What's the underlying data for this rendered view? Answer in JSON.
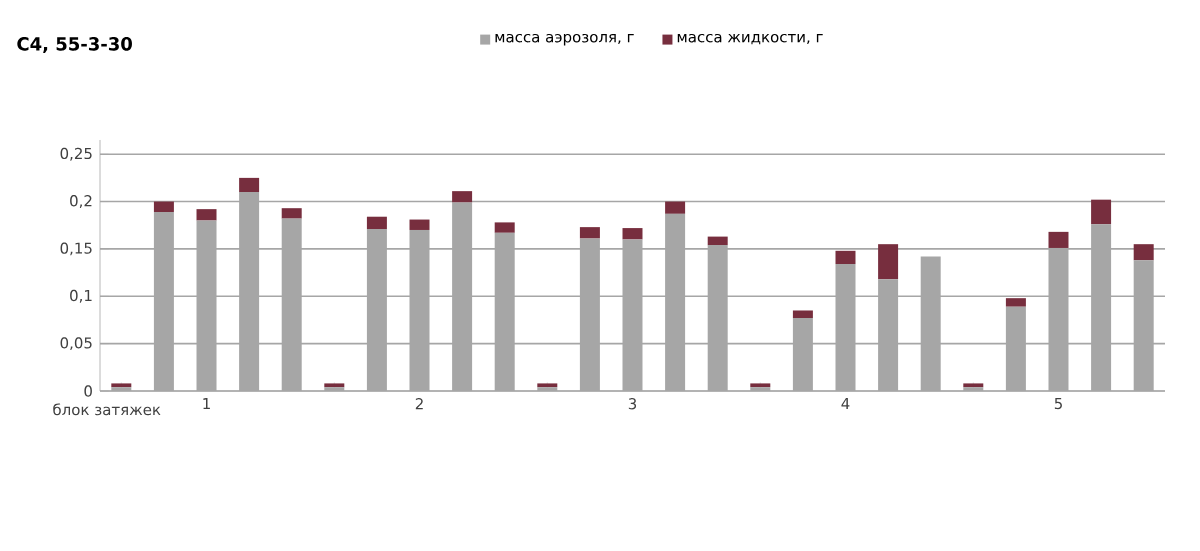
{
  "chart_data": {
    "type": "bar",
    "title": "C4, 55-3-30",
    "xlabel": "блок затяжек",
    "categories": [
      null,
      null,
      "1",
      null,
      null,
      null,
      null,
      "2",
      null,
      null,
      null,
      null,
      "3",
      null,
      null,
      null,
      null,
      "4",
      null,
      null,
      null,
      null,
      "5",
      null,
      null
    ],
    "series": [
      {
        "name": "масса аэрозоля, г",
        "color": "#a6a6a6",
        "values": [
          0.004,
          0.189,
          0.18,
          0.21,
          0.182,
          0.004,
          0.171,
          0.17,
          0.199,
          0.167,
          0.004,
          0.161,
          0.16,
          0.187,
          0.154,
          0.004,
          0.077,
          0.134,
          0.118,
          0.142,
          0.004,
          0.089,
          0.151,
          0.176,
          0.138
        ]
      },
      {
        "name": "масса жидкости, г",
        "color": "#772e3e",
        "values": [
          0.004,
          0.011,
          0.012,
          0.015,
          0.011,
          0.004,
          0.013,
          0.011,
          0.012,
          0.011,
          0.004,
          0.012,
          0.012,
          0.013,
          0.009,
          0.004,
          0.008,
          0.014,
          0.037,
          0,
          0.004,
          0.009,
          0.017,
          0.026,
          0.017
        ]
      }
    ],
    "stacked": true,
    "ylim": [
      0,
      0.265
    ],
    "yticks": [
      0,
      {
        "value": 0.05,
        "label": "0,05"
      },
      {
        "value": 0.1,
        "label": "0,1"
      },
      {
        "value": 0.15,
        "label": "0,15"
      },
      {
        "value": 0.2,
        "label": "0,2"
      },
      {
        "value": 0.25,
        "label": "0,25"
      }
    ],
    "grid": "y",
    "legend": "top"
  }
}
